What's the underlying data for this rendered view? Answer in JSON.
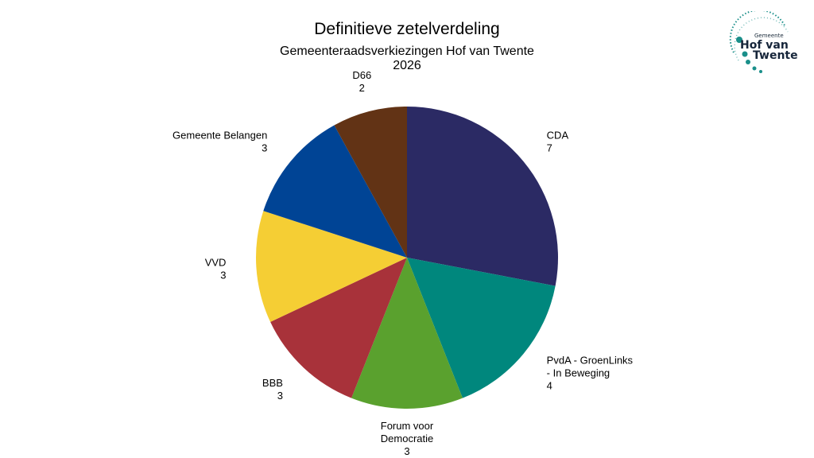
{
  "title": "Definitieve zetelverdeling",
  "subtitle_line1": "Gemeenteraadsverkiezingen Hof van Twente",
  "subtitle_line2": "2026",
  "logo": {
    "small_text": "Gemeente",
    "name_line1": "Hof van",
    "name_line2": "Twente",
    "color": "#1a8f8a"
  },
  "chart_data": {
    "type": "pie",
    "title": "Definitieve zetelverdeling",
    "subtitle": "Gemeenteraadsverkiezingen Hof van Twente 2026",
    "start_direction": "12 o'clock, clockwise",
    "slices": [
      {
        "label_lines": [
          "CDA"
        ],
        "value": 7,
        "value_text": "7",
        "color": "#2b2a64"
      },
      {
        "label_lines": [
          "PvdA - GroenLinks",
          "- In Beweging"
        ],
        "value": 4,
        "value_text": "4",
        "color": "#00877d"
      },
      {
        "label_lines": [
          "Forum voor",
          "Democratie"
        ],
        "value": 3,
        "value_text": "3",
        "color": "#5aa12e"
      },
      {
        "label_lines": [
          "BBB"
        ],
        "value": 3,
        "value_text": "3",
        "color": "#a8323a"
      },
      {
        "label_lines": [
          "VVD"
        ],
        "value": 3,
        "value_text": "3",
        "color": "#f5ce34"
      },
      {
        "label_lines": [
          "Gemeente Belangen"
        ],
        "value": 3,
        "value_text": "3",
        "color": "#004495"
      },
      {
        "label_lines": [
          "D66"
        ],
        "value": 2,
        "value_text": "2",
        "color": "#623315"
      }
    ]
  }
}
